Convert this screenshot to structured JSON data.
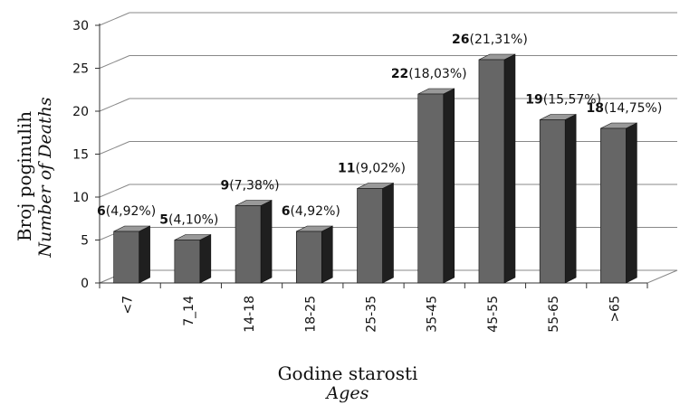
{
  "chart_data": {
    "type": "bar",
    "categories": [
      "<7",
      "7_14",
      "14-18",
      "18-25",
      "25-35",
      "35-45",
      "45-55",
      "55-65",
      ">65"
    ],
    "values": [
      6,
      5,
      9,
      6,
      11,
      22,
      26,
      19,
      18
    ],
    "percent_labels": [
      "(4,92%)",
      "(4,10%)",
      "(7,38%)",
      "(4,92%)",
      "(9,02%)",
      "(18,03%)",
      "(21,31%)",
      "(15,57%)",
      "(14,75%)"
    ],
    "ylim": [
      0,
      30
    ],
    "yticks": [
      0,
      5,
      10,
      15,
      20,
      25,
      30
    ],
    "ylabel": "Broj poginulih",
    "ylabel_en": "Number of Deaths",
    "xlabel": "Godine starosti",
    "xlabel_en": "Ages",
    "grid": true,
    "style": "3d-column",
    "colors": {
      "bar_front": "#666666",
      "bar_side": "#1f1f1f",
      "bar_top": "#999999",
      "grid": "#888888"
    }
  }
}
